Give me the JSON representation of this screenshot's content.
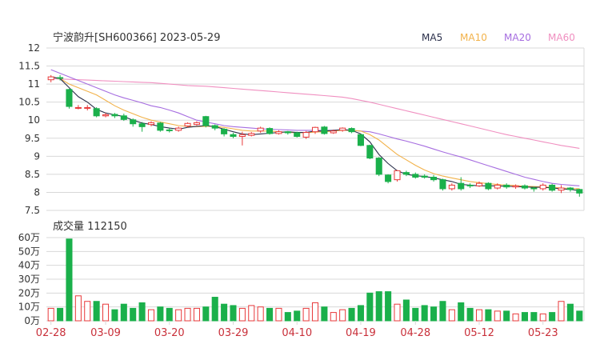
{
  "chart_data": [
    {
      "type": "candlestick",
      "title": "宁波韵升[SH600366] 2023-05-29",
      "ylim": [
        7.5,
        12
      ],
      "y_ticks": [
        "12",
        "11.5",
        "11",
        "10.5",
        "10",
        "9.5",
        "9",
        "8.5",
        "8",
        "7.5"
      ],
      "y_tick_values": [
        12,
        11.5,
        11,
        10.5,
        10,
        9.5,
        9,
        8.5,
        8,
        7.5
      ],
      "legend": [
        "MA5",
        "MA10",
        "MA20",
        "MA60"
      ],
      "legend_placement": "top-right",
      "colors": {
        "up": "#e8393a",
        "down": "#1ab04b",
        "MA5": "#2a2f4a",
        "MA10": "#f2b24a",
        "MA20": "#a66de0",
        "MA60": "#f08fc0",
        "grid": "#d8d8d8",
        "axis_text": "#333333",
        "date_text": "#c9303a"
      },
      "candles": [
        [
          11.12,
          11.2,
          11.25,
          11.05
        ],
        [
          11.18,
          11.16,
          11.25,
          11.1
        ],
        [
          10.85,
          10.38,
          10.87,
          10.32
        ],
        [
          10.35,
          10.35,
          10.42,
          10.3
        ],
        [
          10.33,
          10.35,
          10.42,
          10.27
        ],
        [
          10.32,
          10.12,
          10.36,
          10.08
        ],
        [
          10.12,
          10.15,
          10.2,
          10.08
        ],
        [
          10.16,
          10.12,
          10.2,
          10.06
        ],
        [
          10.12,
          10.02,
          10.18,
          9.98
        ],
        [
          10.01,
          9.9,
          10.05,
          9.82
        ],
        [
          9.9,
          9.82,
          9.95,
          9.68
        ],
        [
          9.88,
          9.93,
          9.97,
          9.83
        ],
        [
          9.92,
          9.72,
          9.95,
          9.68
        ],
        [
          9.73,
          9.72,
          9.78,
          9.66
        ],
        [
          9.72,
          9.78,
          9.82,
          9.68
        ],
        [
          9.84,
          9.91,
          9.94,
          9.8
        ],
        [
          9.88,
          9.93,
          9.97,
          9.85
        ],
        [
          10.1,
          9.85,
          10.12,
          9.8
        ],
        [
          9.85,
          9.78,
          9.88,
          9.72
        ],
        [
          9.75,
          9.62,
          9.78,
          9.55
        ],
        [
          9.6,
          9.55,
          9.65,
          9.5
        ],
        [
          9.55,
          9.6,
          9.68,
          9.3
        ],
        [
          9.58,
          9.63,
          9.67,
          9.55
        ],
        [
          9.7,
          9.78,
          9.82,
          9.65
        ],
        [
          9.77,
          9.63,
          9.8,
          9.6
        ],
        [
          9.63,
          9.68,
          9.72,
          9.6
        ],
        [
          9.68,
          9.65,
          9.7,
          9.6
        ],
        [
          9.65,
          9.55,
          9.68,
          9.52
        ],
        [
          9.53,
          9.66,
          9.7,
          9.48
        ],
        [
          9.68,
          9.8,
          9.82,
          9.62
        ],
        [
          9.81,
          9.63,
          9.84,
          9.6
        ],
        [
          9.65,
          9.7,
          9.74,
          9.62
        ],
        [
          9.72,
          9.78,
          9.8,
          9.68
        ],
        [
          9.77,
          9.68,
          9.8,
          9.64
        ],
        [
          9.6,
          9.3,
          9.62,
          9.28
        ],
        [
          9.3,
          8.95,
          9.32,
          8.92
        ],
        [
          8.95,
          8.5,
          8.98,
          8.45
        ],
        [
          8.48,
          8.3,
          8.5,
          8.25
        ],
        [
          8.35,
          8.6,
          8.62,
          8.3
        ],
        [
          8.55,
          8.5,
          8.6,
          8.45
        ],
        [
          8.5,
          8.42,
          8.55,
          8.38
        ],
        [
          8.45,
          8.42,
          8.5,
          8.38
        ],
        [
          8.42,
          8.35,
          8.48,
          8.3
        ],
        [
          8.35,
          8.1,
          8.38,
          8.05
        ],
        [
          8.1,
          8.2,
          8.25,
          8.05
        ],
        [
          8.25,
          8.1,
          8.42,
          8.05
        ],
        [
          8.2,
          8.18,
          8.25,
          8.12
        ],
        [
          8.18,
          8.25,
          8.3,
          8.15
        ],
        [
          8.25,
          8.1,
          8.28,
          8.06
        ],
        [
          8.12,
          8.2,
          8.25,
          8.08
        ],
        [
          8.2,
          8.15,
          8.25,
          8.1
        ],
        [
          8.15,
          8.18,
          8.22,
          8.1
        ],
        [
          8.18,
          8.12,
          8.22,
          8.08
        ],
        [
          8.12,
          8.1,
          8.16,
          8.02
        ],
        [
          8.1,
          8.2,
          8.25,
          8.05
        ],
        [
          8.2,
          8.06,
          8.24,
          8.02
        ],
        [
          8.06,
          8.12,
          8.2,
          7.98
        ],
        [
          8.12,
          8.08,
          8.15,
          8.02
        ],
        [
          8.08,
          7.98,
          8.1,
          7.88
        ]
      ],
      "MA5": [
        11.2,
        11.15,
        10.9,
        10.65,
        10.5,
        10.3,
        10.2,
        10.15,
        10.1,
        10.0,
        9.92,
        9.88,
        9.82,
        9.78,
        9.75,
        9.8,
        9.83,
        9.85,
        9.82,
        9.75,
        9.68,
        9.62,
        9.6,
        9.62,
        9.64,
        9.66,
        9.68,
        9.66,
        9.66,
        9.7,
        9.7,
        9.72,
        9.74,
        9.72,
        9.62,
        9.4,
        9.05,
        8.8,
        8.6,
        8.5,
        8.46,
        8.44,
        8.4,
        8.35,
        8.3,
        8.22,
        8.2,
        8.18,
        8.18,
        8.18,
        8.17,
        8.16,
        8.15,
        8.14,
        8.14,
        8.12,
        8.1,
        8.08,
        8.05
      ],
      "MA10": [
        11.2,
        11.15,
        11.0,
        10.9,
        10.8,
        10.7,
        10.55,
        10.4,
        10.28,
        10.18,
        10.08,
        10.0,
        9.95,
        9.9,
        9.85,
        9.83,
        9.82,
        9.83,
        9.83,
        9.8,
        9.76,
        9.72,
        9.7,
        9.7,
        9.7,
        9.68,
        9.66,
        9.65,
        9.65,
        9.67,
        9.68,
        9.7,
        9.72,
        9.72,
        9.7,
        9.6,
        9.45,
        9.25,
        9.05,
        8.9,
        8.75,
        8.62,
        8.52,
        8.45,
        8.4,
        8.35,
        8.3,
        8.27,
        8.24,
        8.22,
        8.2,
        8.19,
        8.17,
        8.16,
        8.15,
        8.14,
        8.12,
        8.11,
        8.1
      ],
      "MA20": [
        11.4,
        11.3,
        11.2,
        11.1,
        11.0,
        10.9,
        10.8,
        10.7,
        10.62,
        10.55,
        10.48,
        10.4,
        10.35,
        10.28,
        10.2,
        10.1,
        10.0,
        9.95,
        9.9,
        9.85,
        9.82,
        9.8,
        9.78,
        9.76,
        9.75,
        9.74,
        9.73,
        9.72,
        9.72,
        9.72,
        9.72,
        9.72,
        9.72,
        9.72,
        9.7,
        9.68,
        9.62,
        9.55,
        9.48,
        9.42,
        9.35,
        9.28,
        9.2,
        9.12,
        9.05,
        8.98,
        8.9,
        8.82,
        8.74,
        8.66,
        8.58,
        8.5,
        8.42,
        8.36,
        8.3,
        8.25,
        8.22,
        8.2,
        8.18
      ],
      "MA60": [
        11.15,
        11.14,
        11.13,
        11.12,
        11.11,
        11.1,
        11.09,
        11.08,
        11.07,
        11.06,
        11.05,
        11.04,
        11.02,
        11.0,
        10.98,
        10.96,
        10.95,
        10.94,
        10.92,
        10.9,
        10.88,
        10.86,
        10.84,
        10.82,
        10.8,
        10.78,
        10.76,
        10.74,
        10.72,
        10.7,
        10.68,
        10.66,
        10.64,
        10.6,
        10.55,
        10.5,
        10.44,
        10.38,
        10.32,
        10.26,
        10.2,
        10.14,
        10.08,
        10.02,
        9.96,
        9.9,
        9.84,
        9.78,
        9.72,
        9.66,
        9.6,
        9.55,
        9.5,
        9.45,
        9.4,
        9.35,
        9.3,
        9.26,
        9.22
      ]
    },
    {
      "type": "bar",
      "title": "成交量 112150",
      "ylim": [
        0,
        60
      ],
      "y_ticks": [
        "60万",
        "50万",
        "40万",
        "30万",
        "20万",
        "10万",
        "0万"
      ],
      "y_tick_values": [
        60,
        50,
        40,
        30,
        20,
        10,
        0
      ],
      "x_labels": [
        "02-28",
        "03-09",
        "03-20",
        "03-29",
        "04-10",
        "04-19",
        "04-28",
        "05-12",
        "05-23"
      ],
      "x_label_index": [
        0,
        6,
        13,
        20,
        27,
        34,
        40,
        47,
        54
      ],
      "values": [
        9,
        9,
        59,
        18,
        14,
        14,
        12,
        8,
        12,
        9,
        13,
        8,
        10,
        9,
        8,
        9,
        9,
        10,
        17,
        12,
        11,
        9,
        11,
        10,
        9,
        9,
        6,
        7,
        9,
        13,
        10,
        6,
        8,
        9,
        11,
        20,
        21,
        21,
        12,
        15,
        9,
        11,
        10,
        14,
        8,
        13,
        9,
        8,
        8,
        7,
        7,
        5,
        6,
        6,
        5,
        6,
        14,
        12,
        7
      ]
    }
  ]
}
